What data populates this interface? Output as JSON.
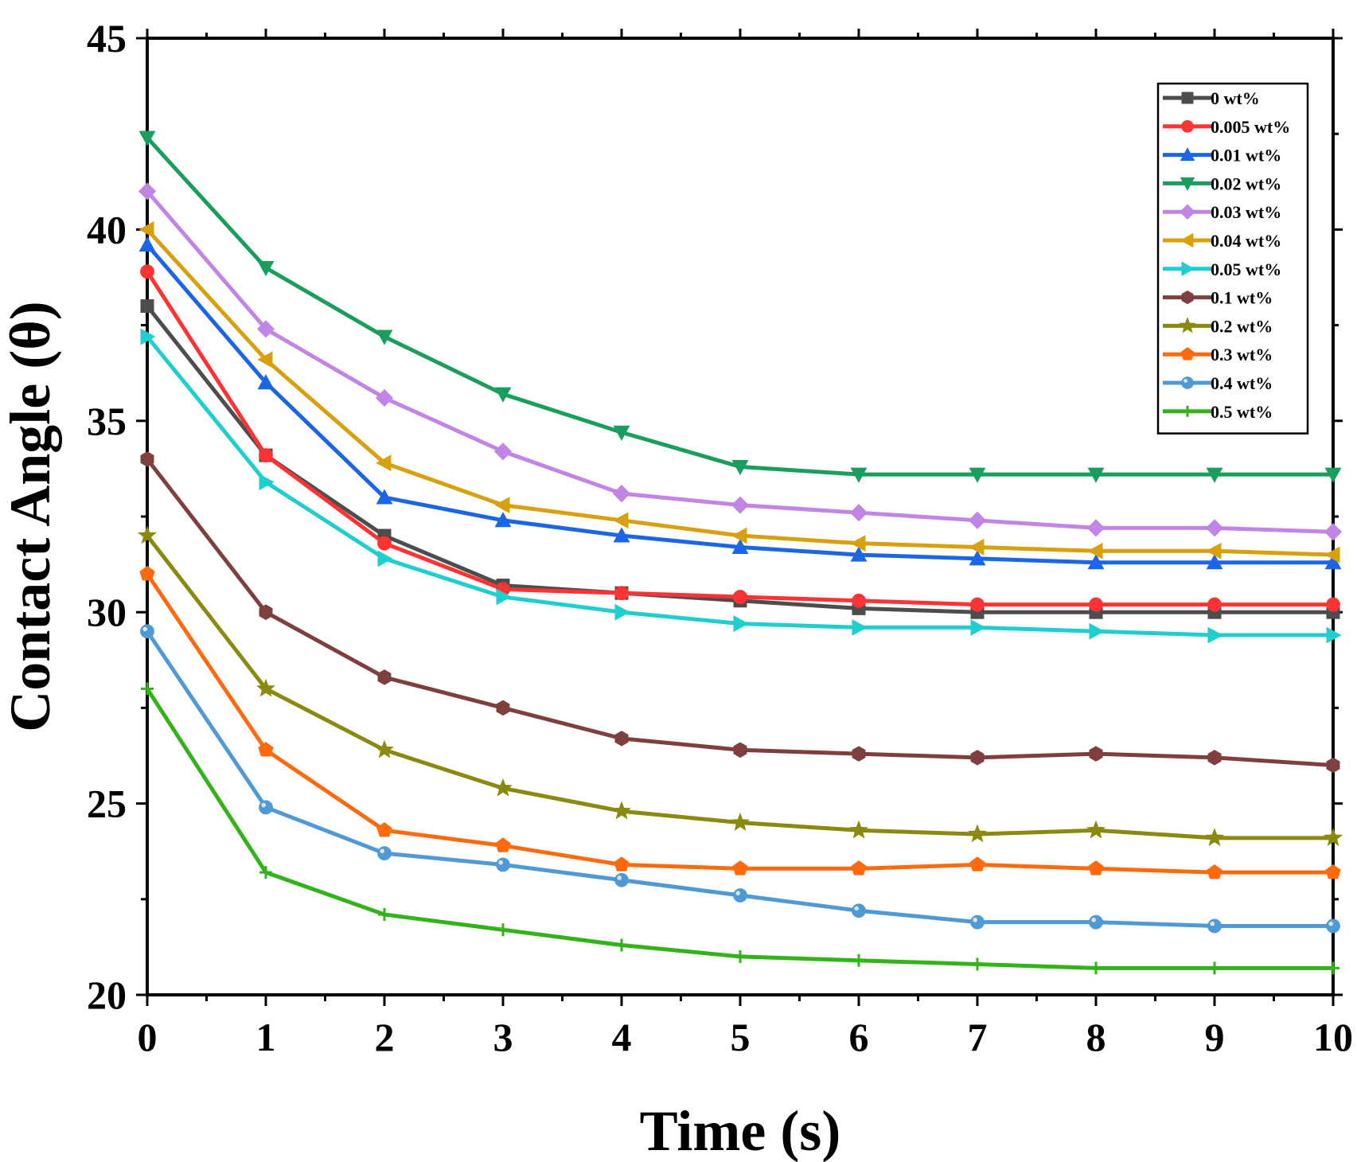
{
  "chart_data": {
    "type": "line",
    "xlabel": "Time (s)",
    "ylabel": "Contact Angle (θ)",
    "xlim": [
      0,
      10
    ],
    "ylim": [
      20,
      45
    ],
    "x_ticks": [
      0,
      1,
      2,
      3,
      4,
      5,
      6,
      7,
      8,
      9,
      10
    ],
    "y_ticks": [
      20,
      25,
      30,
      35,
      40,
      45
    ],
    "grid": false,
    "legend_position": "top-right",
    "x": [
      0,
      1,
      2,
      3,
      4,
      5,
      6,
      7,
      8,
      9,
      10
    ],
    "series": [
      {
        "name": "0 wt%",
        "color": "#4d4d4d",
        "marker": "square",
        "values": [
          38.0,
          34.1,
          32.0,
          30.7,
          30.5,
          30.3,
          30.1,
          30.0,
          30.0,
          30.0,
          30.0
        ]
      },
      {
        "name": "0.005 wt%",
        "color": "#ff3333",
        "marker": "circle",
        "values": [
          38.9,
          34.1,
          31.8,
          30.6,
          30.5,
          30.4,
          30.3,
          30.2,
          30.2,
          30.2,
          30.2
        ]
      },
      {
        "name": "0.01 wt%",
        "color": "#1a66e6",
        "marker": "triangle-up",
        "values": [
          39.6,
          36.0,
          33.0,
          32.4,
          32.0,
          31.7,
          31.5,
          31.4,
          31.3,
          31.3,
          31.3
        ]
      },
      {
        "name": "0.02 wt%",
        "color": "#1a9e5e",
        "marker": "triangle-down",
        "values": [
          42.4,
          39.0,
          37.2,
          35.7,
          34.7,
          33.8,
          33.6,
          33.6,
          33.6,
          33.6,
          33.6
        ]
      },
      {
        "name": "0.03 wt%",
        "color": "#c285e6",
        "marker": "diamond",
        "values": [
          41.0,
          37.4,
          35.6,
          34.2,
          33.1,
          32.8,
          32.6,
          32.4,
          32.2,
          32.2,
          32.1
        ]
      },
      {
        "name": "0.04 wt%",
        "color": "#d9a00d",
        "marker": "triangle-left",
        "values": [
          40.0,
          36.6,
          33.9,
          32.8,
          32.4,
          32.0,
          31.8,
          31.7,
          31.6,
          31.6,
          31.5
        ]
      },
      {
        "name": "0.05 wt%",
        "color": "#1fcfcf",
        "marker": "triangle-right",
        "values": [
          37.2,
          33.4,
          31.4,
          30.4,
          30.0,
          29.7,
          29.6,
          29.6,
          29.5,
          29.4,
          29.4
        ]
      },
      {
        "name": "0.1 wt%",
        "color": "#7f3f3f",
        "marker": "hexagon",
        "values": [
          34.0,
          30.0,
          28.3,
          27.5,
          26.7,
          26.4,
          26.3,
          26.2,
          26.3,
          26.2,
          26.0
        ]
      },
      {
        "name": "0.2 wt%",
        "color": "#8a8a0f",
        "marker": "star",
        "values": [
          32.0,
          28.0,
          26.4,
          25.4,
          24.8,
          24.5,
          24.3,
          24.2,
          24.3,
          24.1,
          24.1
        ]
      },
      {
        "name": "0.3 wt%",
        "color": "#ff6a0d",
        "marker": "pentagon",
        "values": [
          31.0,
          26.4,
          24.3,
          23.9,
          23.4,
          23.3,
          23.3,
          23.4,
          23.3,
          23.2,
          23.2
        ]
      },
      {
        "name": "0.4 wt%",
        "color": "#4f9ad6",
        "marker": "sphere",
        "values": [
          29.5,
          24.9,
          23.7,
          23.4,
          23.0,
          22.6,
          22.2,
          21.9,
          21.9,
          21.8,
          21.8
        ]
      },
      {
        "name": "0.5 wt%",
        "color": "#33b31a",
        "marker": "plus",
        "values": [
          28.0,
          23.2,
          22.1,
          21.7,
          21.3,
          21.0,
          20.9,
          20.8,
          20.7,
          20.7,
          20.7
        ]
      }
    ]
  }
}
